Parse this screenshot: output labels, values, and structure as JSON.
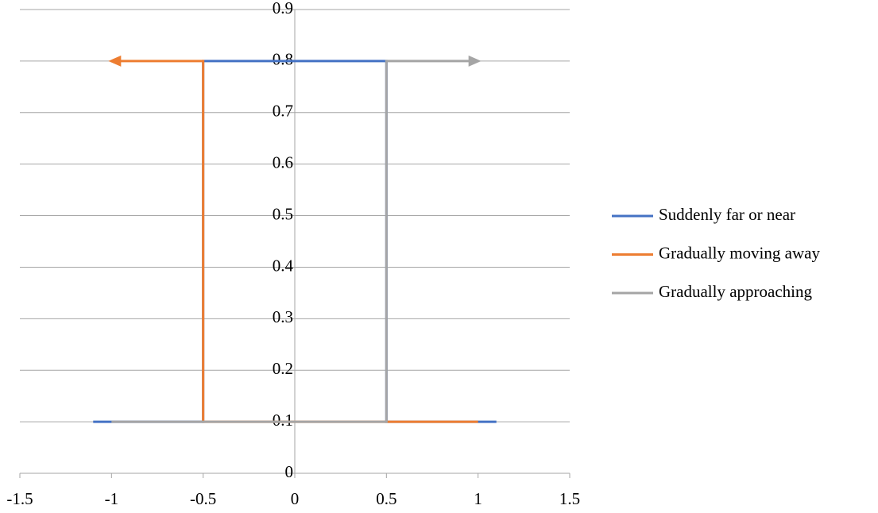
{
  "chart_data": {
    "type": "line",
    "xlim": [
      -1.5,
      1.5
    ],
    "xticks": [
      -1.5,
      -1,
      -0.5,
      0,
      0.5,
      1,
      1.5
    ],
    "ylim": [
      0,
      0.9
    ],
    "yticks": [
      0,
      0.1,
      0.2,
      0.3,
      0.4,
      0.5,
      0.6,
      0.7,
      0.8,
      0.9
    ],
    "grid": true,
    "legend": "right",
    "series": [
      {
        "name": "Suddenly far or near",
        "color": "#4472c4",
        "x": [
          -1.1,
          -0.5,
          -0.5,
          0.5,
          0.5,
          1.1
        ],
        "values": [
          0.1,
          0.1,
          0.8,
          0.8,
          0.1,
          0.1
        ],
        "end_arrow": false
      },
      {
        "name": "Gradually moving away",
        "color": "#ed7d31",
        "x": [
          1,
          -0.5,
          -0.5,
          -1
        ],
        "values": [
          0.1,
          0.1,
          0.8,
          0.8
        ],
        "end_arrow": true
      },
      {
        "name": "Gradually approaching",
        "color": "#a5a5a5",
        "x": [
          -1,
          0.5,
          0.5,
          1
        ],
        "values": [
          0.1,
          0.1,
          0.8,
          0.8
        ],
        "end_arrow": true
      }
    ]
  }
}
